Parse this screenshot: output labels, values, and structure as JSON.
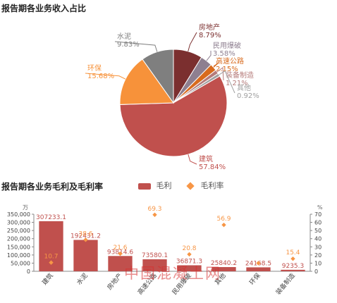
{
  "colors": {
    "bar": "#c0504d",
    "line": "#f79646",
    "axis": "#888888"
  },
  "watermark": "中国混凝土网",
  "chart_data": [
    {
      "type": "pie",
      "title": "报告期各业务收入占比",
      "slices": [
        {
          "label": "房地产",
          "value_label": "8.79%",
          "value": 8.79,
          "color": "#7b2f2f"
        },
        {
          "label": "民用爆破",
          "value_label": "3.58%",
          "value": 3.58,
          "color": "#8e7f90"
        },
        {
          "label": "高速公路",
          "value_label": "2.15%",
          "value": 2.15,
          "color": "#d86b1e"
        },
        {
          "label": "装备制造",
          "value_label": "1.21%",
          "value": 1.21,
          "color": "#b57b7a"
        },
        {
          "label": "其他",
          "value_label": "0.92%",
          "value": 0.92,
          "color": "#a0a0a0"
        },
        {
          "label": "建筑",
          "value_label": "57.84%",
          "value": 57.84,
          "color": "#c0504d"
        },
        {
          "label": "环保",
          "value_label": "15.68%",
          "value": 15.68,
          "color": "#f7923a"
        },
        {
          "label": "水泥",
          "value_label": "9.83%",
          "value": 9.83,
          "color": "#7f7f7f"
        }
      ]
    },
    {
      "type": "bar",
      "title": "报告期各业务毛利及毛利率",
      "categories": [
        "建筑",
        "水泥",
        "房地产",
        "高速公路",
        "民用爆破",
        "其他",
        "环保",
        "装备制造"
      ],
      "series": [
        {
          "name": "毛利",
          "type": "bar",
          "values": [
            307233.1,
            192431.2,
            93814.6,
            73580.1,
            36871.3,
            25840.2,
            24168.5,
            9235.3
          ],
          "labels": [
            "307233.1",
            "192431.2",
            "93814.6",
            "73580.1",
            "36871.3",
            "25840.2",
            "24168.5",
            "9235.3"
          ]
        },
        {
          "name": "毛利率",
          "type": "scatter",
          "values": [
            10.7,
            38.6,
            21.6,
            69.3,
            20.8,
            56.9,
            10.0,
            15.4
          ],
          "labels": [
            "10.7",
            "38.6",
            "21.6",
            "69.3",
            "20.8",
            "56.9",
            "",
            "15.4"
          ]
        }
      ],
      "y_left": {
        "unit": "万",
        "ylim": [
          0,
          350000
        ],
        "ticks": [
          "0",
          "50,000",
          "100,000",
          "150,000",
          "200,000",
          "250,000",
          "300,000",
          "350,000"
        ]
      },
      "y_right": {
        "unit": "%",
        "ylim": [
          0,
          70
        ],
        "ticks": [
          "0",
          "10",
          "20",
          "30",
          "40",
          "50",
          "60",
          "70"
        ]
      },
      "legend": "top-center"
    }
  ]
}
